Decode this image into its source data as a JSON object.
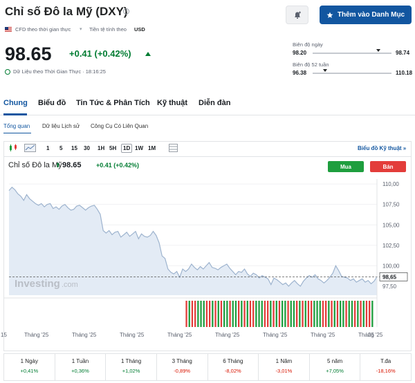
{
  "header": {
    "title": "Chỉ số Đô la Mỹ (DXY)",
    "info_glyph": "i",
    "add_watchlist_label": "Thêm vào Danh Mục",
    "meta_cfd": "CFD theo thời gian thực",
    "meta_currency_label": "Tiền tệ tính theo",
    "meta_currency": "USD",
    "price": "98.65",
    "change": "+0.41 (+0.42%)",
    "realtime_note": "Dữ Liệu theo Thời Gian Thực · 18:16:25",
    "day_range": {
      "label": "Biên độ ngày",
      "low": "98.20",
      "high": "98.74",
      "position": 0.83
    },
    "week52_range": {
      "label": "Biên độ 52 tuần",
      "low": "96.38",
      "high": "110.18",
      "position": 0.16
    }
  },
  "tabs": {
    "main": [
      "Chung",
      "Biểu đồ",
      "Tin Tức & Phân Tích",
      "Kỹ thuật",
      "Diễn đàn"
    ],
    "active_main": "Chung",
    "sub": [
      "Tổng quan",
      "Dữ liệu Lịch sử",
      "Công Cụ Có Liên Quan"
    ],
    "active_sub": "Tổng quan"
  },
  "chart": {
    "timeframes": [
      "1",
      "5",
      "15",
      "30",
      "1H",
      "5H",
      "1D",
      "1W",
      "1M"
    ],
    "active_timeframe": "1D",
    "technical_link": "Biểu đồ Kỹ thuật »",
    "name": "Chỉ số Đô la Mỹ",
    "arrow": "⬆",
    "price": "98.65",
    "change": "+0.41 (+0.42%)",
    "buy_label": "Mua",
    "sell_label": "Bán",
    "watermark_main": "Investing",
    "watermark_suffix": ".com",
    "current_price_label": "98,65",
    "colors": {
      "line": "#9db3ce",
      "fill": "#e3ebf5",
      "up": "#1e9e3e",
      "down": "#e33d3a"
    }
  },
  "chart_data": {
    "type": "area",
    "ylim": [
      96.4,
      110.6
    ],
    "y_ticks": [
      {
        "value": 110,
        "label": "110,00"
      },
      {
        "value": 107.5,
        "label": "107,50"
      },
      {
        "value": 105,
        "label": "105,00"
      },
      {
        "value": 102.5,
        "label": "102,50"
      },
      {
        "value": 100,
        "label": "100,00"
      },
      {
        "value": 97.5,
        "label": "97,50"
      }
    ],
    "x_tick_labels": [
      "15",
      "Tháng '25",
      "Tháng '25",
      "Tháng '25",
      "Tháng '25",
      "Tháng '25",
      "Tháng '25",
      "Tháng '25",
      "Tháng '25",
      "25"
    ],
    "values": [
      109.2,
      109.6,
      109.3,
      108.8,
      108.5,
      108.0,
      108.7,
      108.2,
      107.9,
      107.6,
      107.4,
      107.6,
      107.2,
      107.5,
      107.6,
      107.0,
      107.2,
      106.9,
      107.3,
      107.5,
      107.1,
      106.8,
      106.9,
      107.3,
      107.4,
      107.1,
      106.8,
      107.1,
      107.3,
      107.4,
      106.9,
      106.3,
      104.3,
      104.0,
      104.3,
      103.8,
      104.1,
      104.2,
      103.5,
      103.8,
      104.1,
      103.6,
      103.9,
      104.2,
      103.3,
      103.9,
      103.6,
      103.5,
      103.7,
      104.2,
      103.7,
      102.8,
      101.2,
      100.9,
      99.6,
      99.2,
      99.0,
      99.3,
      98.6,
      99.6,
      99.3,
      99.6,
      100.2,
      99.8,
      99.5,
      99.9,
      99.6,
      100.0,
      100.4,
      99.8,
      99.7,
      99.5,
      99.8,
      100.0,
      100.2,
      99.7,
      99.3,
      98.9,
      99.3,
      99.2,
      99.6,
      99.0,
      98.7,
      99.1,
      98.9,
      98.5,
      98.8,
      98.6,
      98.4,
      97.7,
      98.5,
      98.3,
      98.0,
      97.7,
      97.9,
      97.5,
      97.9,
      98.2,
      97.8,
      97.5,
      98.1,
      98.5,
      98.8,
      98.6,
      98.9,
      98.4,
      98.2,
      97.9,
      98.2,
      98.6,
      99.1,
      100.0,
      99.4,
      98.7,
      98.6,
      98.5,
      98.2,
      98.4,
      98.0,
      98.2,
      98.4,
      98.0,
      98.2,
      97.8,
      98.1,
      98.65
    ],
    "volume": {
      "start_fraction": 0.48,
      "pattern": "mixed up/down daily bars"
    }
  },
  "performance": [
    {
      "label": "1 Ngày",
      "value": "+0,41%",
      "sign": "pos"
    },
    {
      "label": "1 Tuần",
      "value": "+0,36%",
      "sign": "pos"
    },
    {
      "label": "1 Tháng",
      "value": "+1,02%",
      "sign": "pos"
    },
    {
      "label": "3 Tháng",
      "value": "-0,89%",
      "sign": "neg"
    },
    {
      "label": "6 Tháng",
      "value": "-8,02%",
      "sign": "neg"
    },
    {
      "label": "1 Năm",
      "value": "-3,01%",
      "sign": "neg"
    },
    {
      "label": "5 năm",
      "value": "+7,05%",
      "sign": "pos"
    },
    {
      "label": "T.đa",
      "value": "-18,16%",
      "sign": "neg"
    }
  ]
}
